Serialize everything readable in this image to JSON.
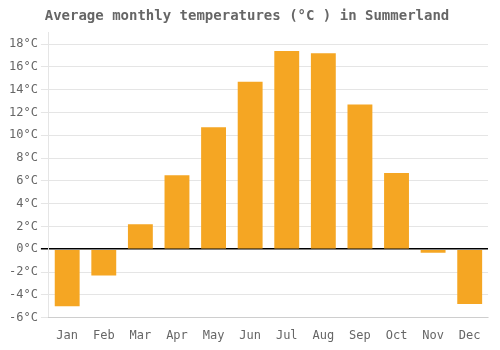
{
  "chart_data": {
    "type": "bar",
    "title": "Average monthly temperatures (°C ) in Summerland",
    "categories": [
      "Jan",
      "Feb",
      "Mar",
      "Apr",
      "May",
      "Jun",
      "Jul",
      "Aug",
      "Sep",
      "Oct",
      "Nov",
      "Dec"
    ],
    "values": [
      -5.0,
      -2.3,
      2.2,
      6.5,
      10.7,
      14.7,
      17.4,
      17.2,
      12.7,
      6.7,
      -0.3,
      -4.8
    ],
    "color": "#F5A623",
    "ylim": [
      -6,
      19
    ],
    "yticks": [
      {
        "value": -6,
        "label": "-6°C"
      },
      {
        "value": -4,
        "label": "-4°C"
      },
      {
        "value": -2,
        "label": "-2°C"
      },
      {
        "value": 0,
        "label": "0°C"
      },
      {
        "value": 2,
        "label": "2°C"
      },
      {
        "value": 4,
        "label": "4°C"
      },
      {
        "value": 6,
        "label": "6°C"
      },
      {
        "value": 8,
        "label": "8°C"
      },
      {
        "value": 10,
        "label": "10°C"
      },
      {
        "value": 12,
        "label": "12°C"
      },
      {
        "value": 14,
        "label": "14°C"
      },
      {
        "value": 16,
        "label": "16°C"
      },
      {
        "value": 18,
        "label": "18°C"
      }
    ],
    "grid": true
  }
}
